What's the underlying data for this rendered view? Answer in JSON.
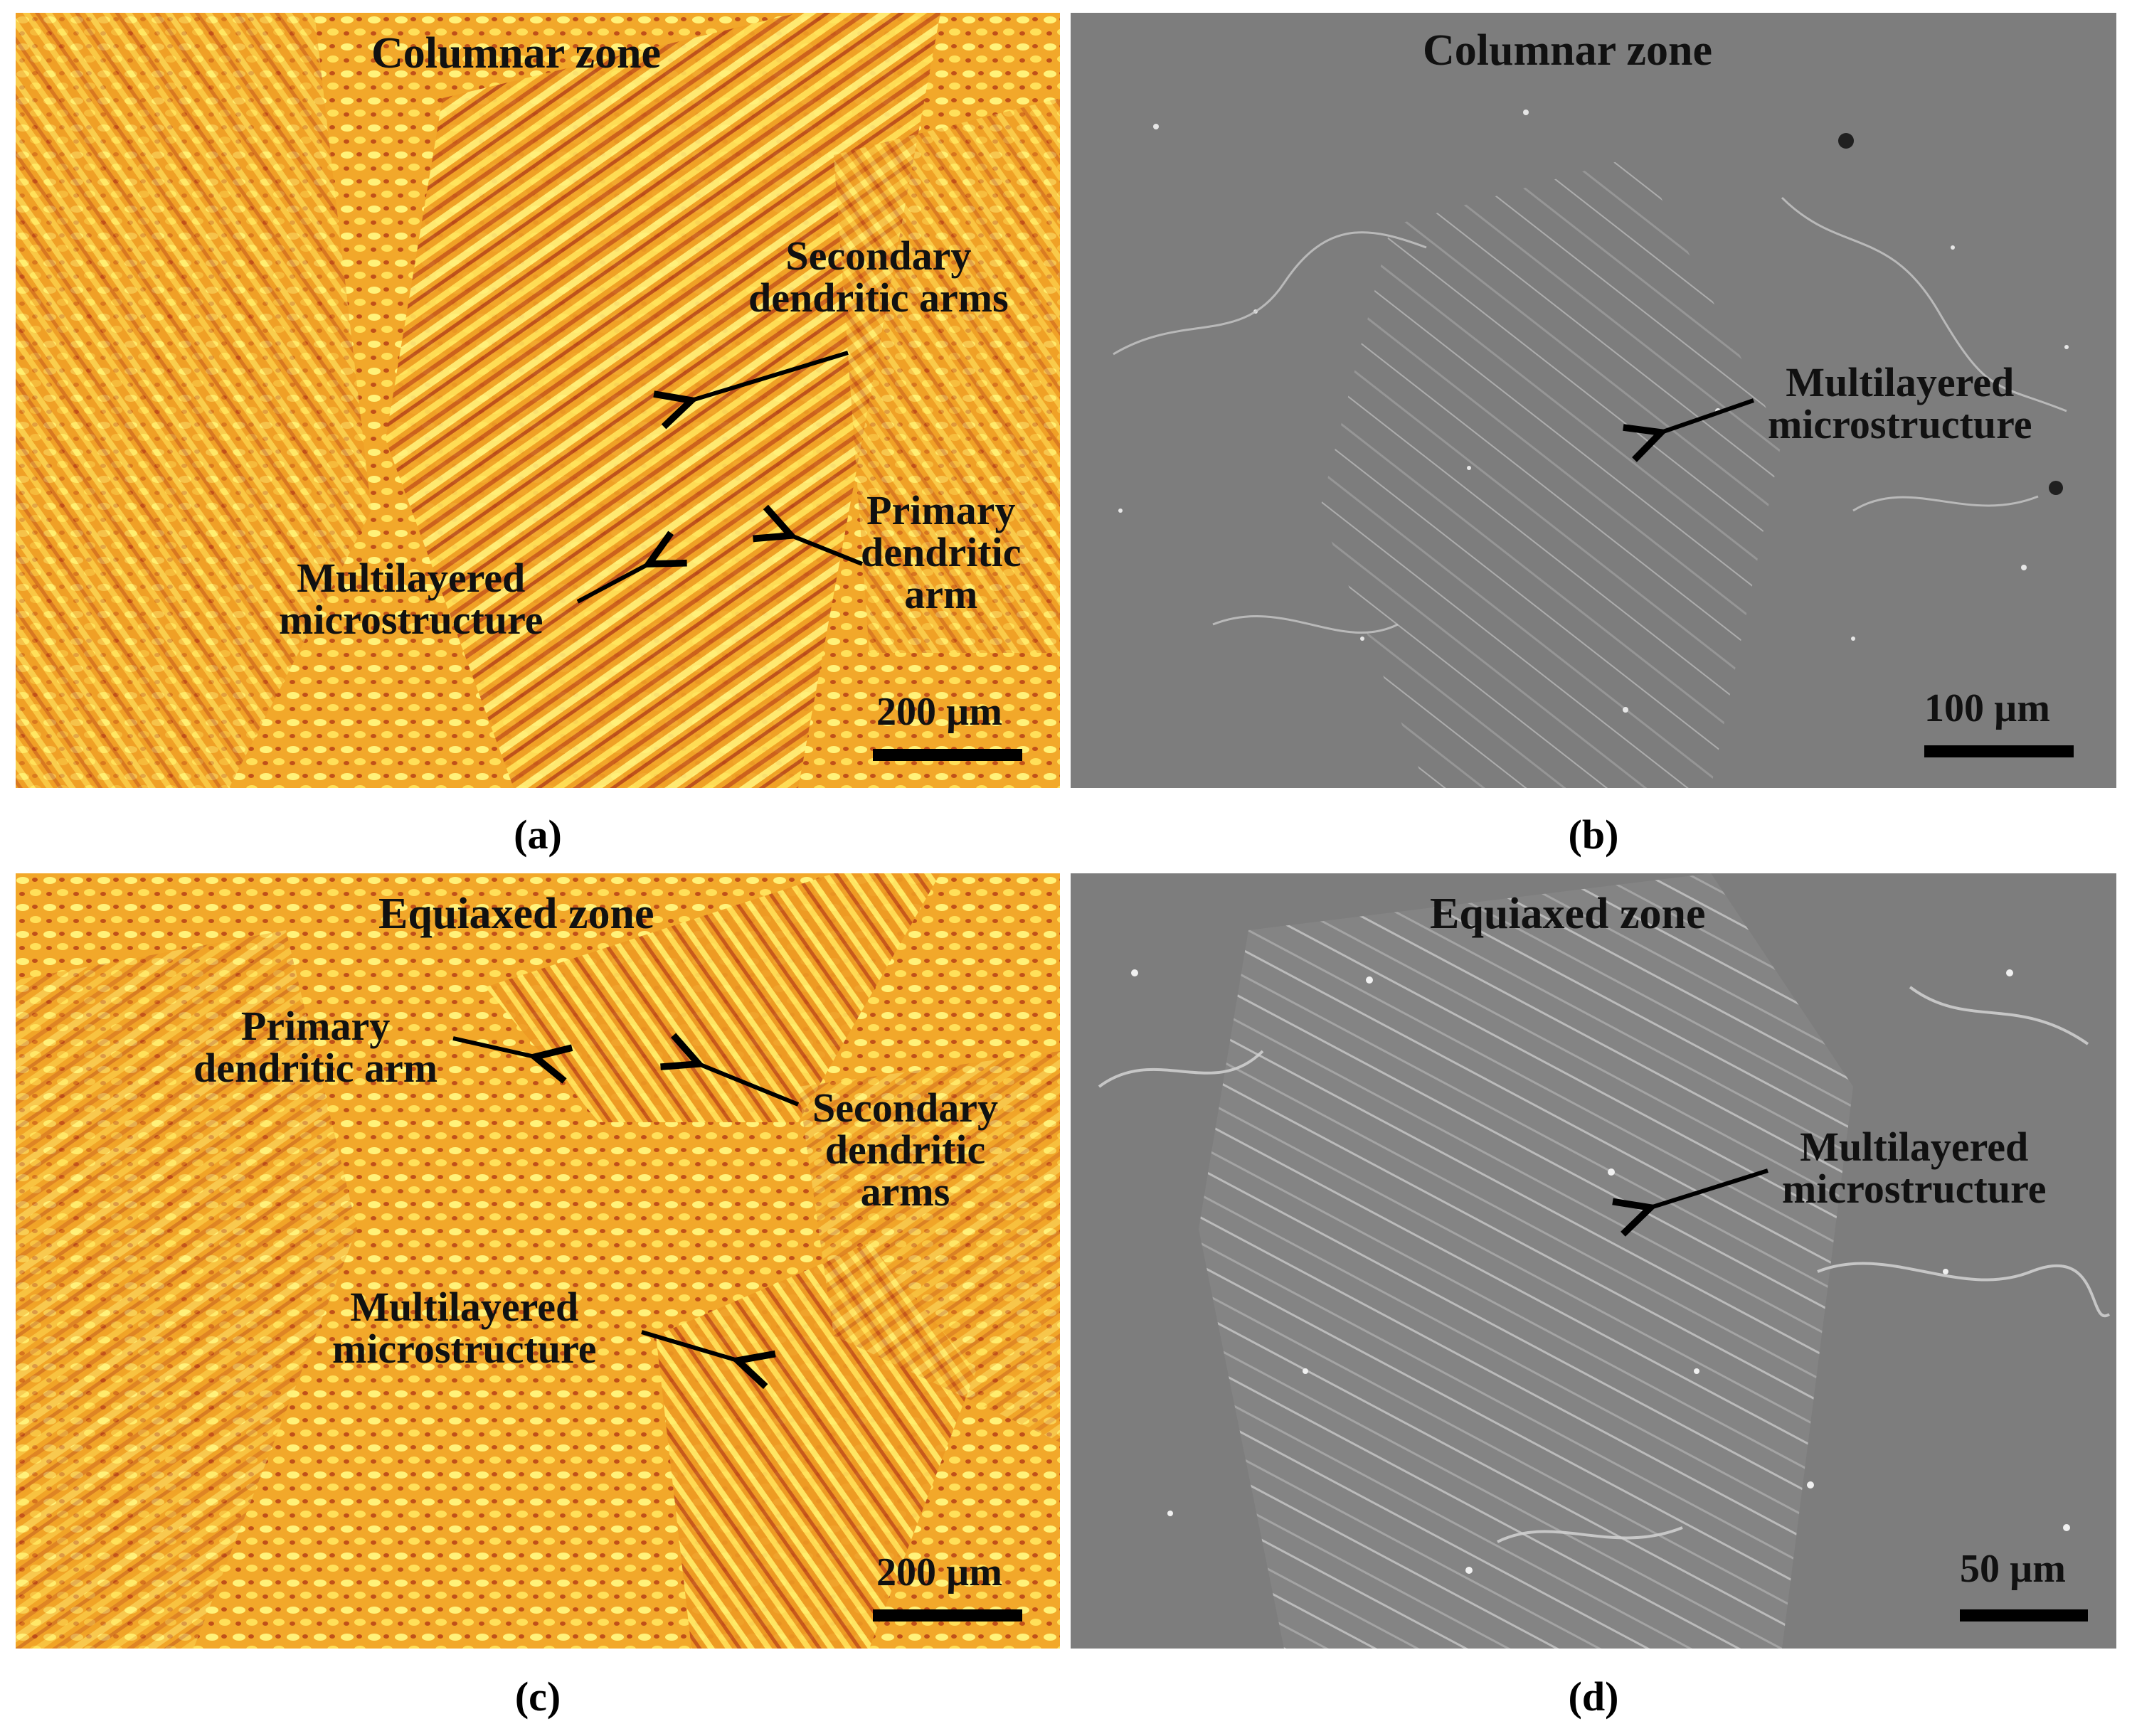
{
  "panels": {
    "a": {
      "caption": "(a)",
      "zone_title": "Columnar zone",
      "annotations": {
        "secondary": "Secondary\ndendritic arms",
        "primary": "Primary\ndendritic\narm",
        "multilayered": "Multilayered\nmicrostructure"
      },
      "scale_label": "200 µm"
    },
    "b": {
      "caption": "(b)",
      "zone_title": "Columnar zone",
      "annotations": {
        "multilayered": "Multilayered\nmicrostructure"
      },
      "scale_label": "100 µm"
    },
    "c": {
      "caption": "(c)",
      "zone_title": "Equiaxed zone",
      "annotations": {
        "primary": "Primary\ndendritic arm",
        "secondary": "Secondary\ndendritic\narms",
        "multilayered": "Multilayered\nmicrostructure"
      },
      "scale_label": "200 µm"
    },
    "d": {
      "caption": "(d)",
      "zone_title": "Equiaxed zone",
      "annotations": {
        "multilayered": "Multilayered\nmicrostructure"
      },
      "scale_label": "50 µm"
    }
  },
  "colors": {
    "optical_base": "#f0a024",
    "optical_dark": "#c8501a",
    "optical_light": "#fff070",
    "sem_base": "#7d7d7d",
    "sem_light": "#e8e8e8"
  }
}
